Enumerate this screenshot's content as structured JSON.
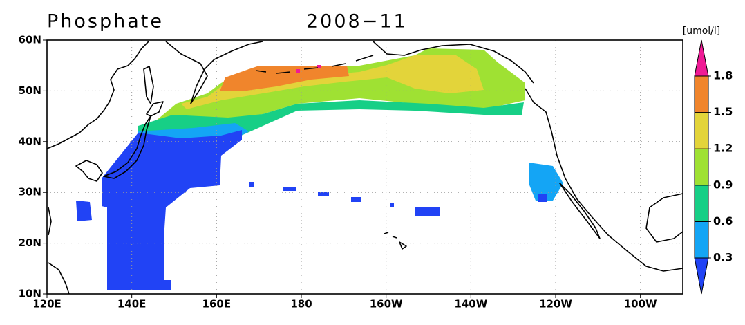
{
  "header": {
    "title": "Phosphate",
    "subtitle": "2008−11"
  },
  "map": {
    "lon_range": [
      120,
      270
    ],
    "lat_range": [
      10,
      60
    ],
    "lat_ticks": [
      {
        "value": 60,
        "label": "60N"
      },
      {
        "value": 50,
        "label": "50N"
      },
      {
        "value": 40,
        "label": "40N"
      },
      {
        "value": 30,
        "label": "30N"
      },
      {
        "value": 20,
        "label": "20N"
      },
      {
        "value": 10,
        "label": "10N"
      }
    ],
    "lon_ticks": [
      {
        "value": 120,
        "label": "120E"
      },
      {
        "value": 140,
        "label": "140E"
      },
      {
        "value": 160,
        "label": "160E"
      },
      180,
      {
        "value": 200,
        "label": "160W"
      },
      {
        "value": 220,
        "label": "140W"
      },
      {
        "value": 240,
        "label": "120W"
      },
      {
        "value": 260,
        "label": "100W"
      }
    ],
    "grid": true
  },
  "colorbar": {
    "unit": "[umol/l]",
    "levels": [
      0.3,
      0.6,
      0.9,
      1.2,
      1.5,
      1.8
    ],
    "colors": [
      "#2143f5",
      "#14a5f5",
      "#17cf86",
      "#9fe133",
      "#e3d43a",
      "#f0852c",
      "#ef1a95"
    ]
  }
}
